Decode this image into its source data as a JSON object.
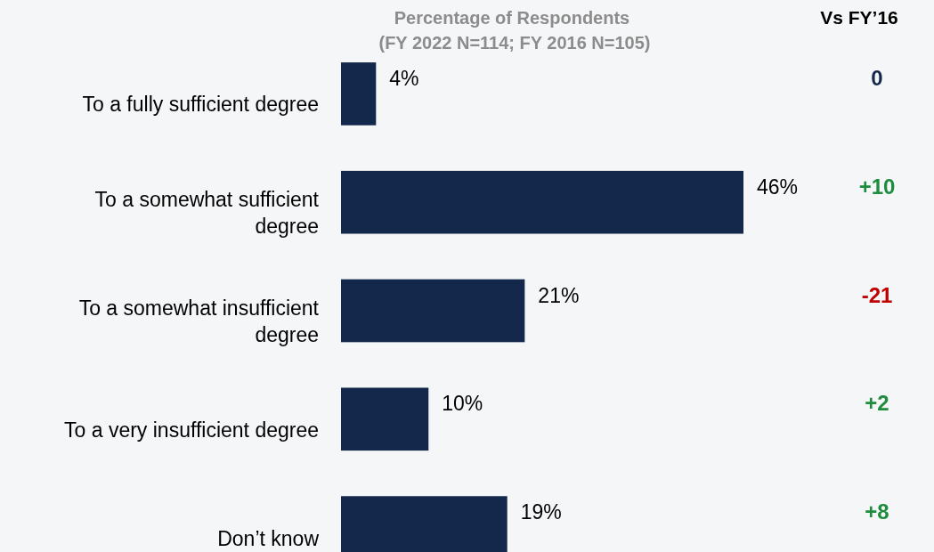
{
  "chart_data": {
    "type": "bar",
    "orientation": "horizontal",
    "title": "Percentage of Respondents",
    "subtitle": "(FY 2022 N=114; FY 2016 N=105)",
    "categories": [
      "To a fully sufficient degree",
      "To a somewhat sufficient degree",
      "To a somewhat insufficient degree",
      "To a very insufficient degree",
      "Don’t know"
    ],
    "values": [
      4,
      46,
      21,
      10,
      19
    ],
    "color": "#14284b",
    "value_labels": [
      "4%",
      "46%",
      "21%",
      "10%",
      "19%"
    ],
    "annotations": [
      "Vs FY’16",
      "0",
      "+10",
      "-21",
      "+2",
      "+8"
    ]
  }
}
